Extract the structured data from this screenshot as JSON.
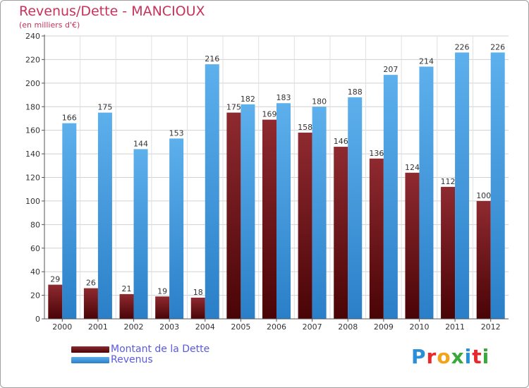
{
  "colors": {
    "debt": "#6b1416",
    "revenue": "#3d9be0",
    "title": "#c8325a",
    "legend_text": "#5a5ae0"
  },
  "legend": {
    "debt_label": "Montant de la Dette",
    "revenue_label": "Revenus"
  },
  "brand": {
    "letters": [
      "P",
      "r",
      "o",
      "x",
      "i",
      "t",
      "i"
    ],
    "colors": [
      "#2a8fd8",
      "#e8282a",
      "#f2a31a",
      "#3aa83a",
      "#2a8fd8",
      "#e8282a",
      "#3aa83a"
    ]
  },
  "chart_data": {
    "type": "bar",
    "title": "Revenus/Dette - MANCIOUX",
    "subtitle": "(en milliers d'€)",
    "xlabel": "",
    "ylabel": "",
    "ylim": [
      0,
      240
    ],
    "yticks": [
      0,
      20,
      40,
      60,
      80,
      100,
      120,
      140,
      160,
      180,
      200,
      220,
      240
    ],
    "grid": true,
    "legend_position": "bottom-left",
    "categories": [
      "2000",
      "2001",
      "2002",
      "2003",
      "2004",
      "2005",
      "2006",
      "2007",
      "2008",
      "2009",
      "2010",
      "2011",
      "2012"
    ],
    "series": [
      {
        "name": "Montant de la Dette",
        "values": [
          29,
          26,
          21,
          19,
          18,
          175,
          169,
          158,
          146,
          136,
          124,
          112,
          100
        ]
      },
      {
        "name": "Revenus",
        "values": [
          166,
          175,
          144,
          153,
          216,
          182,
          183,
          180,
          188,
          207,
          214,
          226,
          226
        ]
      }
    ]
  }
}
